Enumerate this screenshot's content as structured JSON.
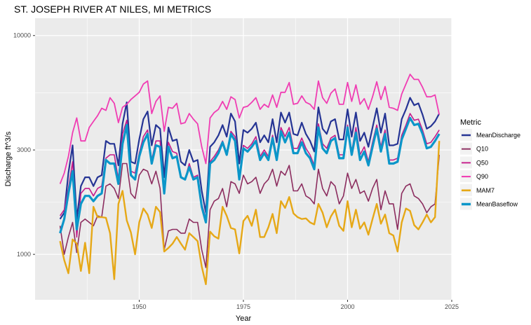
{
  "chart_data": {
    "type": "line",
    "title": "ST. JOSEPH RIVER AT NILES, MI  METRICS",
    "xlabel": "Year",
    "ylabel": "Discharge ft^3/s",
    "y_scale": "log",
    "xlim": [
      1925,
      2025
    ],
    "ylim": [
      620,
      12000
    ],
    "x_ticks": [
      1950,
      1975,
      2000,
      2025
    ],
    "x_tick_labels": [
      "1950",
      "1975",
      "2000",
      "2025"
    ],
    "y_ticks": [
      1000,
      3000,
      10000
    ],
    "y_tick_labels": [
      "1000",
      "3000",
      "10000"
    ],
    "grid": true,
    "panel_background": "#ebebeb",
    "legend_title": "Metric",
    "legend_position": "right",
    "x": [
      1931,
      1932,
      1933,
      1934,
      1935,
      1936,
      1937,
      1938,
      1939,
      1940,
      1941,
      1942,
      1943,
      1944,
      1945,
      1946,
      1947,
      1948,
      1949,
      1950,
      1951,
      1952,
      1953,
      1954,
      1955,
      1956,
      1957,
      1958,
      1959,
      1960,
      1961,
      1962,
      1963,
      1964,
      1965,
      1966,
      1967,
      1968,
      1969,
      1970,
      1971,
      1972,
      1973,
      1974,
      1975,
      1976,
      1977,
      1978,
      1979,
      1980,
      1981,
      1982,
      1983,
      1984,
      1985,
      1986,
      1987,
      1988,
      1989,
      1990,
      1991,
      1992,
      1993,
      1994,
      1995,
      1996,
      1997,
      1998,
      1999,
      2000,
      2001,
      2002,
      2003,
      2004,
      2005,
      2006,
      2007,
      2008,
      2009,
      2010,
      2011,
      2012,
      2013,
      2014,
      2015,
      2016,
      2017,
      2018,
      2019,
      2020,
      2021,
      2022
    ],
    "series": [
      {
        "name": "MeanDischarge",
        "color": "#253494",
        "width": 2.2,
        "values": [
          1450,
          1550,
          2350,
          3150,
          1450,
          2050,
          2250,
          2250,
          2050,
          2250,
          2300,
          3300,
          3200,
          3200,
          2550,
          3950,
          4950,
          2650,
          2600,
          3350,
          4150,
          4500,
          3150,
          3900,
          3750,
          2250,
          3800,
          3300,
          3350,
          2650,
          2550,
          3000,
          2650,
          2700,
          1950,
          1550,
          3100,
          3250,
          3500,
          3900,
          3450,
          4400,
          4050,
          2600,
          3700,
          3600,
          3750,
          4000,
          3250,
          3500,
          3250,
          4150,
          3250,
          4450,
          4000,
          4450,
          3550,
          3500,
          4000,
          3550,
          3300,
          2950,
          4700,
          3750,
          3550,
          4050,
          4150,
          3350,
          3350,
          4600,
          3450,
          4450,
          3300,
          3600,
          3100,
          3800,
          4650,
          3600,
          4400,
          3150,
          3150,
          3200,
          4150,
          4600,
          5200,
          4800,
          4900,
          4350,
          3750,
          3850,
          4050,
          4400
        ]
      },
      {
        "name": "Q10",
        "color": "#8c2d5f",
        "width": 1.6,
        "values": [
          1350,
          1000,
          1200,
          1400,
          1020,
          1400,
          1450,
          1400,
          1350,
          1500,
          1480,
          2050,
          2100,
          2000,
          1800,
          2600,
          2600,
          1900,
          1800,
          2300,
          2450,
          2400,
          2100,
          2400,
          2000,
          1050,
          1280,
          1300,
          1300,
          1250,
          1250,
          1450,
          1400,
          1400,
          1050,
          870,
          1600,
          1750,
          1800,
          2000,
          1650,
          2150,
          2100,
          1900,
          2300,
          2100,
          2150,
          2250,
          1900,
          2100,
          2200,
          2450,
          2050,
          2400,
          2300,
          2550,
          1950,
          1950,
          2100,
          1850,
          1800,
          1700,
          2450,
          2000,
          1850,
          2150,
          2050,
          1700,
          1850,
          2350,
          2000,
          2200,
          1900,
          1950,
          1750,
          2000,
          2200,
          1600,
          1950,
          1700,
          1700,
          1300,
          1900,
          2050,
          2100,
          1850,
          1800,
          1700,
          1550,
          1650,
          1700,
          2850
        ]
      },
      {
        "name": "Q50",
        "color": "#c51b8a",
        "width": 1.6,
        "values": [
          1500,
          1600,
          2000,
          2650,
          1200,
          1900,
          2000,
          2000,
          1850,
          2000,
          2050,
          2750,
          2850,
          2850,
          2200,
          3550,
          4100,
          2400,
          2350,
          2900,
          3450,
          3700,
          2700,
          3300,
          3300,
          1900,
          3250,
          2950,
          2900,
          2250,
          2200,
          2600,
          2250,
          2300,
          1700,
          1450,
          2650,
          2800,
          3000,
          3300,
          2900,
          3650,
          3450,
          2250,
          3150,
          3050,
          3200,
          3450,
          2800,
          3000,
          2800,
          3500,
          2800,
          3800,
          3450,
          3800,
          3050,
          3050,
          3400,
          3050,
          2850,
          2550,
          3950,
          3200,
          3050,
          3400,
          3500,
          2850,
          2850,
          3900,
          2950,
          3800,
          2850,
          3100,
          2650,
          3250,
          3900,
          3100,
          3700,
          2700,
          2700,
          2750,
          3500,
          3900,
          4400,
          4100,
          4150,
          3700,
          3200,
          3250,
          3450,
          3700
        ]
      },
      {
        "name": "Q90",
        "color": "#f03db3",
        "width": 1.8,
        "values": [
          2100,
          2350,
          2800,
          3600,
          4200,
          3300,
          3300,
          3800,
          4050,
          4300,
          4650,
          4550,
          5200,
          4900,
          4000,
          4700,
          4850,
          5100,
          5300,
          5500,
          6000,
          6200,
          4400,
          5000,
          5300,
          3650,
          4700,
          4650,
          4900,
          3950,
          4000,
          4400,
          4150,
          3950,
          3100,
          2600,
          4200,
          4450,
          4600,
          5000,
          4600,
          5250,
          5100,
          4200,
          4700,
          4750,
          4950,
          5200,
          4600,
          4850,
          4700,
          5350,
          4700,
          5500,
          5500,
          6100,
          4850,
          4900,
          5300,
          4950,
          4850,
          4600,
          6200,
          5200,
          4900,
          5450,
          5700,
          4850,
          4850,
          6100,
          5000,
          5950,
          4850,
          5150,
          4600,
          5250,
          6150,
          5100,
          5850,
          4700,
          4650,
          4550,
          5400,
          6000,
          6650,
          6300,
          6300,
          5800,
          5250,
          5250,
          5350,
          4350
        ]
      },
      {
        "name": "MAM7",
        "color": "#e6a817",
        "width": 2.4,
        "values": [
          1150,
          940,
          820,
          1170,
          1120,
          840,
          1130,
          820,
          1650,
          1480,
          1480,
          1470,
          1250,
          770,
          1700,
          1950,
          1430,
          1260,
          1000,
          1400,
          1620,
          1520,
          1320,
          1650,
          1560,
          1030,
          1070,
          1120,
          1200,
          1120,
          1050,
          1250,
          1200,
          1150,
          880,
          730,
          1270,
          1210,
          1180,
          1650,
          1500,
          1320,
          1300,
          1010,
          1420,
          1500,
          1350,
          1600,
          1200,
          1200,
          1330,
          1530,
          1250,
          1750,
          1630,
          1830,
          1540,
          1480,
          1450,
          1460,
          1400,
          1370,
          1700,
          1550,
          1330,
          1490,
          1600,
          1350,
          1280,
          1750,
          1330,
          1600,
          1310,
          1400,
          1230,
          1450,
          1700,
          1380,
          1520,
          1250,
          1220,
          1030,
          1400,
          1620,
          1580,
          1360,
          1300,
          1400,
          1520,
          1400,
          1480,
          3300
        ]
      },
      {
        "name": "MeanBaseflow",
        "color": "#0b96c9",
        "width": 3.2,
        "values": [
          1250,
          1450,
          1900,
          2400,
          1300,
          1700,
          1850,
          1850,
          1750,
          1850,
          1900,
          2700,
          2600,
          2600,
          2100,
          3200,
          3900,
          2300,
          2200,
          2800,
          3250,
          3550,
          2600,
          3150,
          3100,
          1900,
          3100,
          2750,
          2800,
          2250,
          2200,
          2500,
          2200,
          2250,
          1650,
          1400,
          2600,
          2700,
          2900,
          3250,
          2850,
          3550,
          3300,
          2200,
          3050,
          2950,
          3100,
          3300,
          2700,
          2900,
          2700,
          3400,
          2700,
          3650,
          3250,
          3600,
          2900,
          2900,
          3250,
          2900,
          2750,
          2450,
          3800,
          3050,
          2900,
          3300,
          3400,
          2750,
          2750,
          3800,
          2850,
          3600,
          2700,
          2950,
          2550,
          3100,
          3750,
          2950,
          3550,
          2600,
          2600,
          2650,
          3350,
          3750,
          4200,
          3900,
          3950,
          3550,
          3050,
          3100,
          3300,
          3550
        ]
      }
    ]
  }
}
